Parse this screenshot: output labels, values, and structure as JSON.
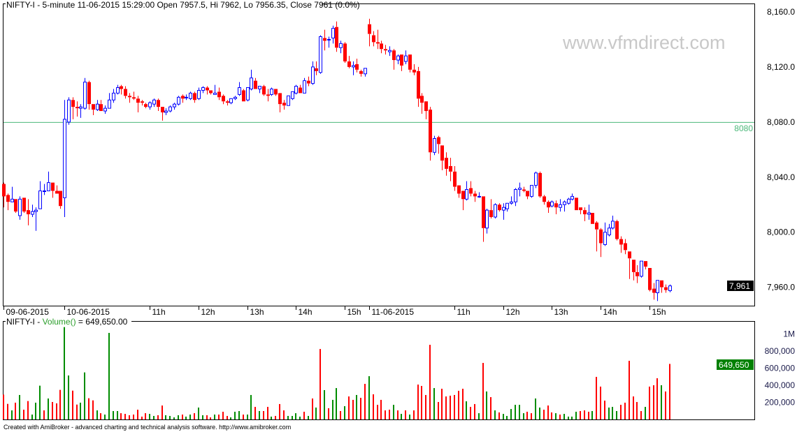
{
  "title": "NIFTY-I - 5-minute 11-06-2015 15:29:00 Open 7957.5, Hi 7962, Lo 7956.35, Close 7961 (0.0%)",
  "watermark": "www.vfmdirect.com",
  "footer": "Created with AmiBroker - advanced charting and technical analysis software. http://www.amibroker.com",
  "volume_panel": {
    "title_prefix": "NIFTY-I - ",
    "title_func": "Volume()",
    "title_value": " = 649,650.00",
    "last_value_label": "649,650",
    "axis_labels": [
      {
        "value": 1000000,
        "label": "1M"
      },
      {
        "value": 800000,
        "label": "800,000"
      },
      {
        "value": 600000,
        "label": "600,000"
      },
      {
        "value": 400000,
        "label": "400,000"
      },
      {
        "value": 200000,
        "label": "200,000"
      }
    ]
  },
  "price_panel": {
    "last_price_label": "7,961",
    "hline": {
      "value": 8080,
      "label": "8080"
    },
    "axis_labels": [
      {
        "value": 8160,
        "label": "8,160.0"
      },
      {
        "value": 8120,
        "label": "8,120.0"
      },
      {
        "value": 8080,
        "label": "8,080.0"
      },
      {
        "value": 8040,
        "label": "8,040.0"
      },
      {
        "value": 8000,
        "label": "8,000.0"
      },
      {
        "value": 7960,
        "label": "7,960.0"
      }
    ]
  },
  "colors": {
    "up": "#0000ff",
    "down": "#ff0000",
    "vol_up": "#008c00",
    "vol_down": "#ff0000",
    "hline": "#4cb87a",
    "watermark": "#c8c8c8",
    "last_price_bg": "#000000",
    "last_vol_bg": "#008000"
  },
  "chart_data": {
    "type": "candlestick",
    "interval": "5-minute",
    "ylim": [
      7942,
      8166
    ],
    "volume_ylim": [
      0,
      1150000
    ],
    "grid": false,
    "x_tick_labels": [
      {
        "bar": 1,
        "label": "09-06-2015"
      },
      {
        "bar": 16,
        "label": "10-06-2015"
      },
      {
        "bar": 37,
        "label": "11h"
      },
      {
        "bar": 49,
        "label": "12h"
      },
      {
        "bar": 61,
        "label": "13h"
      },
      {
        "bar": 73,
        "label": "14h"
      },
      {
        "bar": 85,
        "label": "15h"
      },
      {
        "bar": 91,
        "label": "11-06-2015"
      },
      {
        "bar": 112,
        "label": "11h"
      },
      {
        "bar": 124,
        "label": "12h"
      },
      {
        "bar": 136,
        "label": "13h"
      },
      {
        "bar": 148,
        "label": "14h"
      },
      {
        "bar": 160,
        "label": "15h"
      }
    ],
    "ohlc": [
      [
        8035,
        8036,
        8018,
        8026
      ],
      [
        8027,
        8028,
        8016,
        8022
      ],
      [
        8022,
        8033,
        8022,
        8024
      ],
      [
        8024,
        8024,
        8014,
        8015
      ],
      [
        8012,
        8026,
        8009,
        8024
      ],
      [
        8025,
        8025,
        8014,
        8015
      ],
      [
        8016,
        8024,
        8005,
        8013
      ],
      [
        8013,
        8020,
        8011,
        8015
      ],
      [
        8015,
        8018,
        8001,
        8016
      ],
      [
        8017,
        8037,
        8017,
        8030
      ],
      [
        8030,
        8035,
        8027,
        8030
      ],
      [
        8030,
        8044,
        8030,
        8036
      ],
      [
        8036,
        8036,
        8025,
        8030
      ],
      [
        8030,
        8034,
        8028,
        8028
      ],
      [
        8030,
        8030,
        8017,
        8019
      ],
      [
        8025,
        8096,
        8011,
        8082
      ],
      [
        8080,
        8098,
        8078,
        8096
      ],
      [
        8096,
        8098,
        8082,
        8091
      ],
      [
        8091,
        8095,
        8084,
        8090
      ],
      [
        8090,
        8093,
        8083,
        8091
      ],
      [
        8090,
        8112,
        8089,
        8109
      ],
      [
        8109,
        8110,
        8089,
        8093
      ],
      [
        8093,
        8093,
        8085,
        8089
      ],
      [
        8089,
        8096,
        8088,
        8093
      ],
      [
        8093,
        8096,
        8088,
        8088
      ],
      [
        8088,
        8092,
        8086,
        8090
      ],
      [
        8090,
        8101,
        8090,
        8096
      ],
      [
        8096,
        8104,
        8094,
        8101
      ],
      [
        8101,
        8107,
        8100,
        8105
      ],
      [
        8106,
        8107,
        8100,
        8104
      ],
      [
        8104,
        8106,
        8097,
        8099
      ],
      [
        8099,
        8101,
        8094,
        8098
      ],
      [
        8098,
        8102,
        8096,
        8097
      ],
      [
        8097,
        8099,
        8087,
        8094
      ],
      [
        8095,
        8096,
        8092,
        8094
      ],
      [
        8093,
        8094,
        8090,
        8091
      ],
      [
        8091,
        8095,
        8089,
        8094
      ],
      [
        8093,
        8097,
        8091,
        8096
      ],
      [
        8096,
        8097,
        8088,
        8091
      ],
      [
        8091,
        8091,
        8081,
        8087
      ],
      [
        8087,
        8090,
        8085,
        8088
      ],
      [
        8088,
        8092,
        8087,
        8091
      ],
      [
        8091,
        8094,
        8089,
        8093
      ],
      [
        8093,
        8099,
        8092,
        8098
      ],
      [
        8099,
        8100,
        8094,
        8097
      ],
      [
        8098,
        8100,
        8096,
        8098
      ],
      [
        8097,
        8102,
        8096,
        8101
      ],
      [
        8101,
        8102,
        8094,
        8096
      ],
      [
        8097,
        8105,
        8096,
        8103
      ],
      [
        8103,
        8106,
        8101,
        8105
      ],
      [
        8105,
        8106,
        8100,
        8103
      ],
      [
        8103,
        8103,
        8100,
        8101
      ],
      [
        8100,
        8107,
        8100,
        8101
      ],
      [
        8102,
        8105,
        8096,
        8098
      ],
      [
        8099,
        8100,
        8093,
        8095
      ],
      [
        8095,
        8096,
        8092,
        8094
      ],
      [
        8094,
        8097,
        8093,
        8097
      ],
      [
        8097,
        8099,
        8096,
        8098
      ],
      [
        8100,
        8109,
        8099,
        8105
      ],
      [
        8103,
        8104,
        8095,
        8095
      ],
      [
        8096,
        8105,
        8095,
        8105
      ],
      [
        8104,
        8118,
        8103,
        8112
      ],
      [
        8110,
        8112,
        8104,
        8104
      ],
      [
        8104,
        8106,
        8101,
        8106
      ],
      [
        8106,
        8107,
        8099,
        8100
      ],
      [
        8100,
        8104,
        8095,
        8099
      ],
      [
        8100,
        8105,
        8099,
        8104
      ],
      [
        8104,
        8104,
        8099,
        8100
      ],
      [
        8101,
        8101,
        8087,
        8093
      ],
      [
        8094,
        8096,
        8089,
        8092
      ],
      [
        8092,
        8099,
        8092,
        8099
      ],
      [
        8097,
        8102,
        8096,
        8102
      ],
      [
        8101,
        8107,
        8100,
        8106
      ],
      [
        8105,
        8107,
        8101,
        8101
      ],
      [
        8101,
        8112,
        8101,
        8110
      ],
      [
        8110,
        8113,
        8106,
        8108
      ],
      [
        8108,
        8124,
        8107,
        8120
      ],
      [
        8119,
        8124,
        8114,
        8117
      ],
      [
        8116,
        8143,
        8115,
        8142
      ],
      [
        8141,
        8147,
        8132,
        8139
      ],
      [
        8140,
        8142,
        8134,
        8140
      ],
      [
        8141,
        8150,
        8137,
        8148
      ],
      [
        8149,
        8153,
        8131,
        8134
      ],
      [
        8134,
        8139,
        8130,
        8137
      ],
      [
        8137,
        8138,
        8123,
        8124
      ],
      [
        8124,
        8128,
        8119,
        8120
      ],
      [
        8120,
        8124,
        8114,
        8121
      ],
      [
        8122,
        8126,
        8116,
        8118
      ],
      [
        8117,
        8118,
        8113,
        8115
      ],
      [
        8115,
        8119,
        8113,
        8119
      ],
      [
        8151,
        8155,
        8135,
        8144
      ],
      [
        8143,
        8146,
        8135,
        8138
      ],
      [
        8138,
        8147,
        8133,
        8137
      ],
      [
        8137,
        8139,
        8130,
        8133
      ],
      [
        8133,
        8136,
        8129,
        8132
      ],
      [
        8131,
        8135,
        8128,
        8132
      ],
      [
        8132,
        8133,
        8118,
        8125
      ],
      [
        8125,
        8129,
        8122,
        8128
      ],
      [
        8129,
        8129,
        8117,
        8121
      ],
      [
        8124,
        8132,
        8122,
        8128
      ],
      [
        8129,
        8129,
        8116,
        8118
      ],
      [
        8118,
        8122,
        8114,
        8116
      ],
      [
        8117,
        8120,
        8091,
        8097
      ],
      [
        8099,
        8101,
        8086,
        8094
      ],
      [
        8095,
        8095,
        8082,
        8088
      ],
      [
        8089,
        8091,
        8052,
        8058
      ],
      [
        8058,
        8070,
        8056,
        8068
      ],
      [
        8069,
        8070,
        8057,
        8064
      ],
      [
        8063,
        8063,
        8045,
        8052
      ],
      [
        8054,
        8058,
        8041,
        8046
      ],
      [
        8048,
        8054,
        8037,
        8044
      ],
      [
        8044,
        8048,
        8030,
        8033
      ],
      [
        8034,
        8034,
        8025,
        8028
      ],
      [
        8030,
        8030,
        8016,
        8024
      ],
      [
        8024,
        8037,
        8023,
        8031
      ],
      [
        8032,
        8037,
        8026,
        8028
      ],
      [
        8028,
        8030,
        8022,
        8026
      ],
      [
        8026,
        8029,
        8025,
        8026
      ],
      [
        8026,
        8026,
        7993,
        8003
      ],
      [
        8003,
        8017,
        7999,
        8016
      ],
      [
        8016,
        8024,
        8010,
        8011
      ],
      [
        8011,
        8021,
        8010,
        8020
      ],
      [
        8020,
        8021,
        8015,
        8016
      ],
      [
        8016,
        8021,
        8009,
        8018
      ],
      [
        8017,
        8021,
        8015,
        8021
      ],
      [
        8021,
        8026,
        8020,
        8022
      ],
      [
        8022,
        8032,
        8019,
        8031
      ],
      [
        8031,
        8036,
        8026,
        8032
      ],
      [
        8031,
        8033,
        8029,
        8030
      ],
      [
        8030,
        8030,
        8024,
        8026
      ],
      [
        8026,
        8034,
        8025,
        8034
      ],
      [
        8034,
        8044,
        8032,
        8043
      ],
      [
        8043,
        8044,
        8025,
        8026
      ],
      [
        8026,
        8027,
        8020,
        8022
      ],
      [
        8022,
        8023,
        8014,
        8018
      ],
      [
        8019,
        8023,
        8018,
        8022
      ],
      [
        8021,
        8023,
        8013,
        8018
      ],
      [
        8018,
        8024,
        8015,
        8020
      ],
      [
        8020,
        8023,
        8015,
        8022
      ],
      [
        8021,
        8025,
        8020,
        8024
      ],
      [
        8024,
        8028,
        8023,
        8026
      ],
      [
        8025,
        8025,
        8016,
        8016
      ],
      [
        8018,
        8018,
        8013,
        8016
      ],
      [
        8016,
        8018,
        8008,
        8013
      ],
      [
        8013,
        8020,
        8009,
        8014
      ],
      [
        8014,
        8014,
        8006,
        8006
      ],
      [
        8007,
        8008,
        7986,
        8002
      ],
      [
        8002,
        8003,
        7982,
        7992
      ],
      [
        7991,
        8007,
        7990,
        8000
      ],
      [
        7998,
        8006,
        7997,
        8003
      ],
      [
        8003,
        8012,
        8002,
        8008
      ],
      [
        8008,
        8009,
        7994,
        7995
      ],
      [
        7995,
        7997,
        7985,
        7991
      ],
      [
        7992,
        7995,
        7984,
        7987
      ],
      [
        7986,
        7986,
        7966,
        7981
      ],
      [
        7980,
        7980,
        7965,
        7971
      ],
      [
        7971,
        7976,
        7963,
        7968
      ],
      [
        7968,
        7979,
        7967,
        7979
      ],
      [
        7979,
        7979,
        7973,
        7975
      ],
      [
        7974,
        7974,
        7957,
        7958
      ],
      [
        7959,
        7963,
        7951,
        7956
      ],
      [
        7956,
        7965,
        7950,
        7965
      ],
      [
        7965,
        7965,
        7956,
        7960
      ],
      [
        7960,
        7962,
        7956,
        7958
      ],
      [
        7957.5,
        7962,
        7956.35,
        7961
      ]
    ],
    "volume": [
      291000,
      182000,
      106000,
      196000,
      286000,
      114000,
      215000,
      57000,
      196000,
      395000,
      106000,
      245000,
      204000,
      188000,
      346000,
      1080000,
      514000,
      337000,
      174000,
      196000,
      550000,
      248000,
      223000,
      106000,
      73000,
      57000,
      1012000,
      98000,
      98000,
      73000,
      65000,
      49000,
      57000,
      114000,
      33000,
      73000,
      65000,
      41000,
      49000,
      163000,
      49000,
      41000,
      24000,
      49000,
      57000,
      33000,
      57000,
      73000,
      139000,
      49000,
      49000,
      24000,
      57000,
      57000,
      90000,
      41000,
      24000,
      90000,
      98000,
      57000,
      57000,
      286000,
      147000,
      98000,
      98000,
      147000,
      33000,
      41000,
      180000,
      106000,
      41000,
      41000,
      73000,
      33000,
      90000,
      41000,
      245000,
      139000,
      824000,
      343000,
      131000,
      229000,
      367000,
      98000,
      155000,
      269000,
      229000,
      286000,
      253000,
      416000,
      506000,
      294000,
      171000,
      229000,
      106000,
      114000,
      171000,
      106000,
      65000,
      106000,
      57000,
      106000,
      408000,
      392000,
      286000,
      873000,
      367000,
      204000,
      359000,
      269000,
      278000,
      286000,
      335000,
      359000,
      212000,
      147000,
      180000,
      73000,
      661000,
      327000,
      261000,
      106000,
      82000,
      65000,
      41000,
      122000,
      171000,
      171000,
      73000,
      90000,
      73000,
      245000,
      139000,
      114000,
      163000,
      82000,
      73000,
      57000,
      65000,
      33000,
      33000,
      90000,
      98000,
      106000,
      90000,
      98000,
      498000,
      384000,
      220000,
      139000,
      147000,
      98000,
      171000,
      196000,
      686000,
      269000,
      204000,
      98000,
      147000,
      384000,
      400000,
      482000,
      400000,
      327000,
      649650
    ],
    "volume_colors": "rrgrgrrggg rgrrrggrrg grrgrggggr rrrrrrggrr ggggrggrgg rrgrrrgggr ggrgrrgrrr ggggrgrgrg rggrgrrgrr grrrrrgrgr grrrrrgrrr rrrrgrrgrg rgrggggggr rggrrrgrgg ggrrrgrrrg ggrrrrrrgr rrgrrg"
  }
}
